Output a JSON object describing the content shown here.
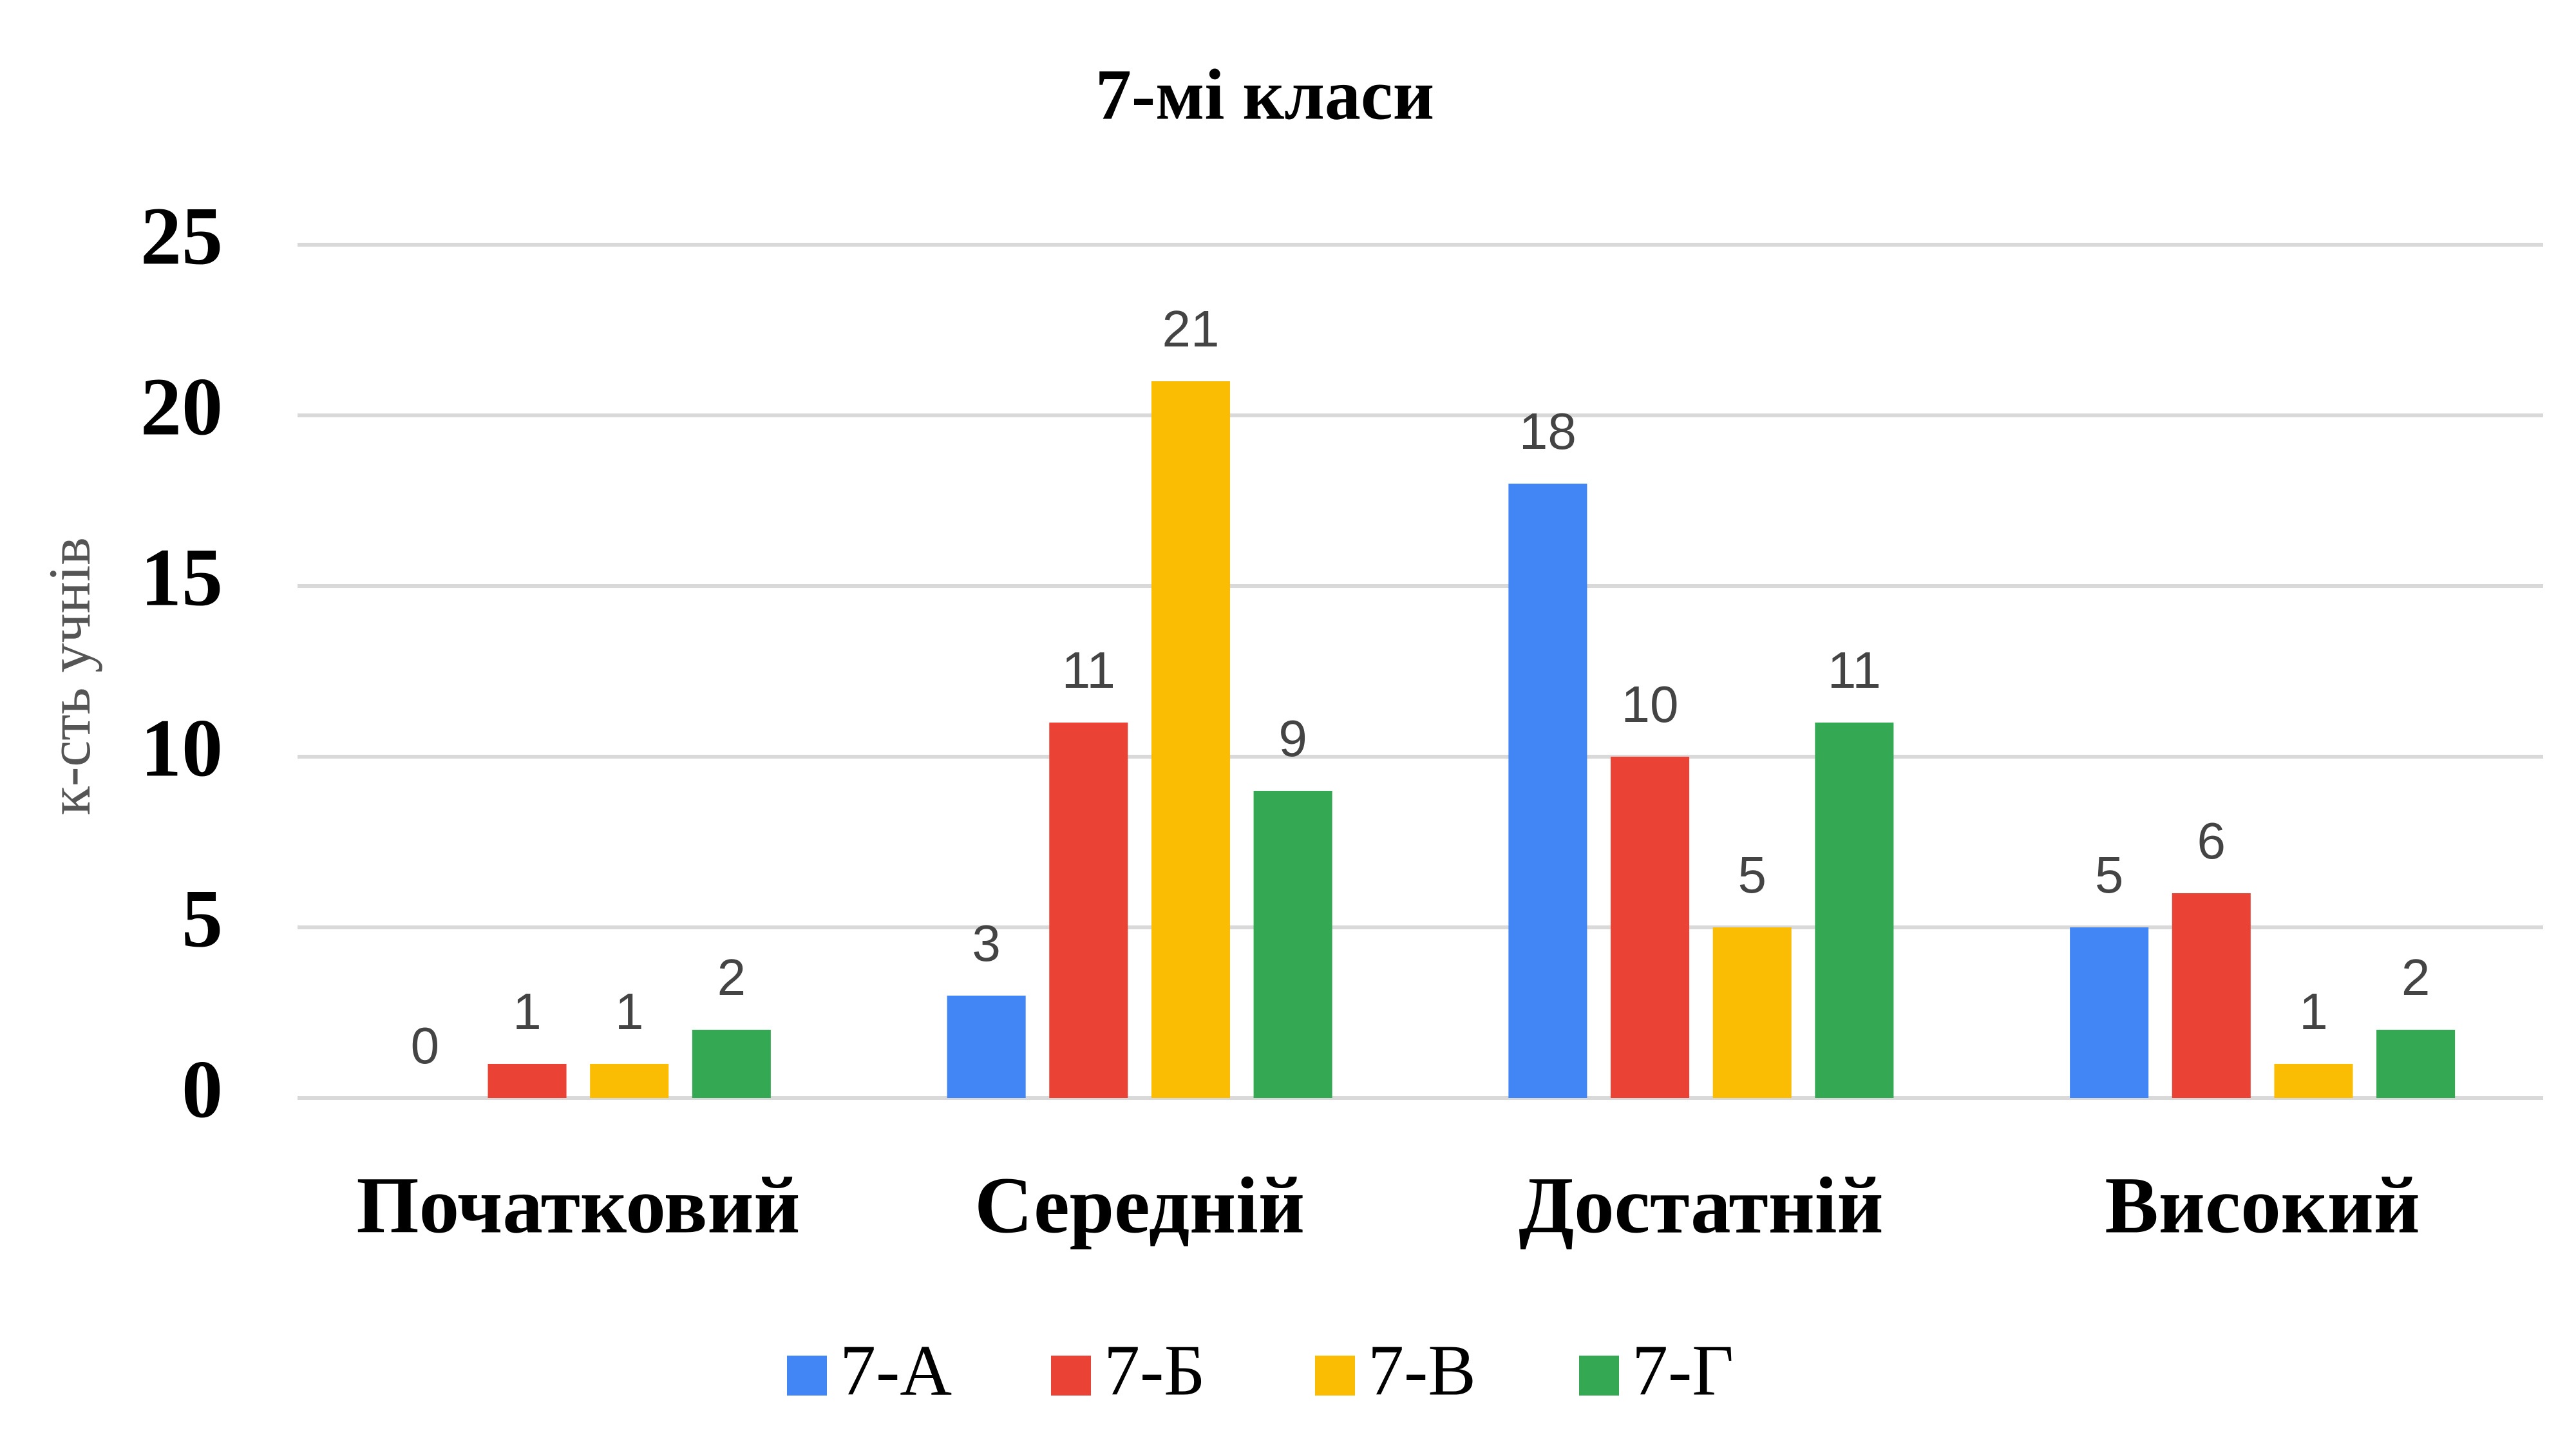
{
  "chart_data": {
    "type": "bar",
    "title": "7-мі класи",
    "y_label": "к-сть учнів",
    "categories": [
      "Початковий",
      "Середній",
      "Достатній",
      "Високий"
    ],
    "series": [
      {
        "name": "7-А",
        "color": "#4285f4",
        "values": [
          0,
          3,
          18,
          5
        ]
      },
      {
        "name": "7-Б",
        "color": "#ea4335",
        "values": [
          1,
          11,
          10,
          6
        ]
      },
      {
        "name": "7-В",
        "color": "#fbbc04",
        "values": [
          1,
          21,
          5,
          1
        ]
      },
      {
        "name": "7-Г",
        "color": "#34a853",
        "values": [
          2,
          9,
          11,
          2
        ]
      }
    ],
    "ylim": [
      0,
      25
    ],
    "yticks": [
      0,
      5,
      10,
      15,
      20,
      25
    ],
    "grid": true,
    "legend": "bottom"
  }
}
